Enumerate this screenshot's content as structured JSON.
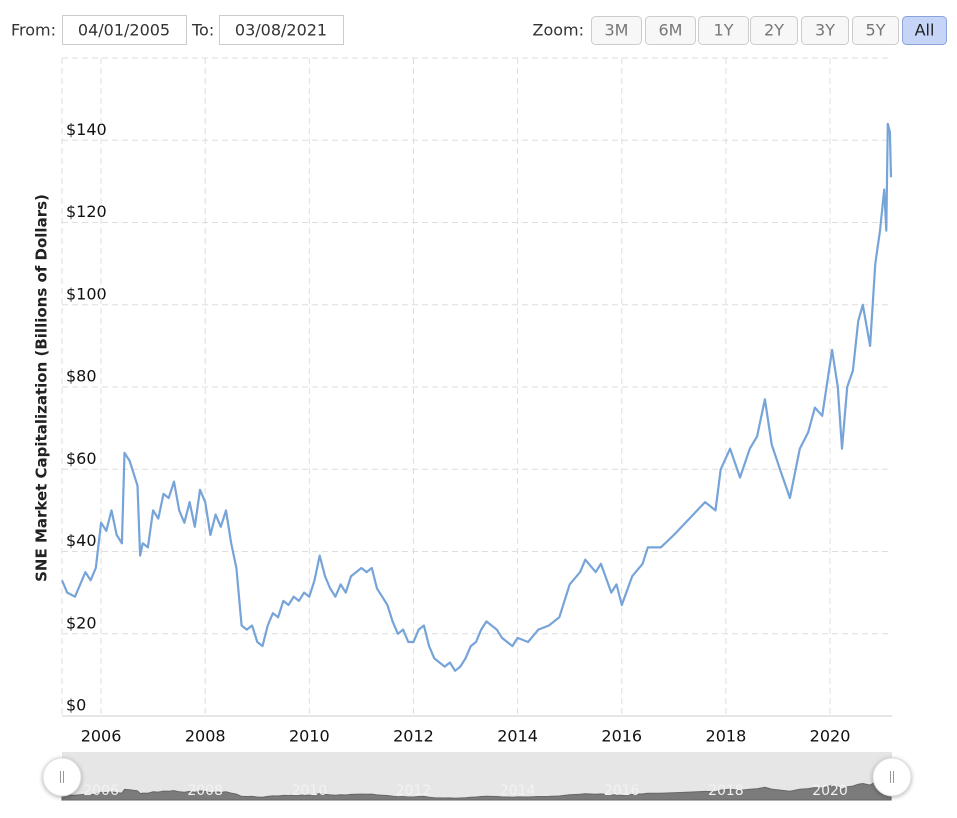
{
  "range_selector": {
    "from_label": "From:",
    "from_value": "04/01/2005",
    "to_label": "To:",
    "to_value": "03/08/2021",
    "zoom_label": "Zoom:",
    "buttons": [
      "3M",
      "6M",
      "1Y",
      "2Y",
      "3Y",
      "5Y",
      "All"
    ],
    "selected": "All"
  },
  "chart_data": {
    "type": "line",
    "y_axis_label": "SNE Market Capitalization (Billions of Dollars)",
    "color": "#76a4d9",
    "x": [
      2005.25,
      2005.35,
      2005.5,
      2005.6,
      2005.7,
      2005.8,
      2005.9,
      2006,
      2006.1,
      2006.2,
      2006.3,
      2006.4,
      2006.45,
      2006.55,
      2006.7,
      2006.75,
      2006.8,
      2006.9,
      2007,
      2007.1,
      2007.2,
      2007.3,
      2007.4,
      2007.5,
      2007.6,
      2007.7,
      2007.8,
      2007.9,
      2008,
      2008.1,
      2008.2,
      2008.3,
      2008.4,
      2008.5,
      2008.6,
      2008.7,
      2008.8,
      2008.9,
      2009,
      2009.1,
      2009.2,
      2009.3,
      2009.4,
      2009.5,
      2009.6,
      2009.7,
      2009.8,
      2009.9,
      2010,
      2010.1,
      2010.2,
      2010.3,
      2010.4,
      2010.5,
      2010.6,
      2010.7,
      2010.8,
      2010.9,
      2011,
      2011.1,
      2011.2,
      2011.3,
      2011.4,
      2011.5,
      2011.6,
      2011.7,
      2011.8,
      2011.9,
      2012,
      2012.1,
      2012.2,
      2012.3,
      2012.4,
      2012.5,
      2012.6,
      2012.7,
      2012.8,
      2012.9,
      2013,
      2013.1,
      2013.2,
      2013.3,
      2013.4,
      2013.5,
      2013.6,
      2013.7,
      2013.8,
      2013.9,
      2014,
      2014.2,
      2014.4,
      2014.6,
      2014.8,
      2015,
      2015.2,
      2015.3,
      2015.5,
      2015.6,
      2015.8,
      2015.9,
      2016,
      2016.2,
      2016.4,
      2016.5,
      2016.75,
      2017,
      2017.3,
      2017.6,
      2017.8,
      2017.9,
      2018.08,
      2018.27,
      2018.46,
      2018.6,
      2018.75,
      2018.88,
      2019.04,
      2019.23,
      2019.42,
      2019.58,
      2019.71,
      2019.85,
      2020.04,
      2020.15,
      2020.23,
      2020.33,
      2020.44,
      2020.54,
      2020.63,
      2020.77,
      2020.87,
      2020.96,
      2021.04,
      2021.08,
      2021.11,
      2021.15,
      2021.17
    ],
    "values": [
      33,
      30,
      29,
      32,
      35,
      33,
      36,
      47,
      45,
      50,
      44,
      42,
      64,
      62,
      56,
      39,
      42,
      41,
      50,
      48,
      54,
      53,
      57,
      50,
      47,
      52,
      46,
      55,
      52,
      44,
      49,
      46,
      50,
      42,
      36,
      22,
      21,
      22,
      18,
      17,
      22,
      25,
      24,
      28,
      27,
      29,
      28,
      30,
      29,
      33,
      39,
      34,
      31,
      29,
      32,
      30,
      34,
      35,
      36,
      35,
      36,
      31,
      29,
      27,
      23,
      20,
      21,
      18,
      18,
      21,
      22,
      17,
      14,
      13,
      12,
      13,
      11,
      12,
      14,
      17,
      18,
      21,
      23,
      22,
      21,
      19,
      18,
      17,
      19,
      18,
      21,
      22,
      24,
      32,
      35,
      38,
      35,
      37,
      30,
      32,
      27,
      34,
      37,
      41,
      41,
      44,
      48,
      52,
      50,
      60,
      65,
      58,
      65,
      68,
      77,
      66,
      60,
      53,
      65,
      69,
      75,
      73,
      89,
      80,
      65,
      80,
      84,
      96,
      100,
      90,
      110,
      118,
      128,
      118,
      144,
      142,
      131
    ],
    "xlim": [
      2005.25,
      2021.19
    ],
    "xticks": [
      2006,
      2008,
      2010,
      2012,
      2014,
      2016,
      2018,
      2020
    ],
    "ylim": [
      0,
      160
    ],
    "yticks": [
      {
        "value": 0,
        "label": "$0"
      },
      {
        "value": 20,
        "label": "$20"
      },
      {
        "value": 40,
        "label": "$40"
      },
      {
        "value": 60,
        "label": "$60"
      },
      {
        "value": 80,
        "label": "$80"
      },
      {
        "value": 100,
        "label": "$100"
      },
      {
        "value": 120,
        "label": "$120"
      },
      {
        "value": 140,
        "label": "$140"
      }
    ],
    "grid": true
  }
}
